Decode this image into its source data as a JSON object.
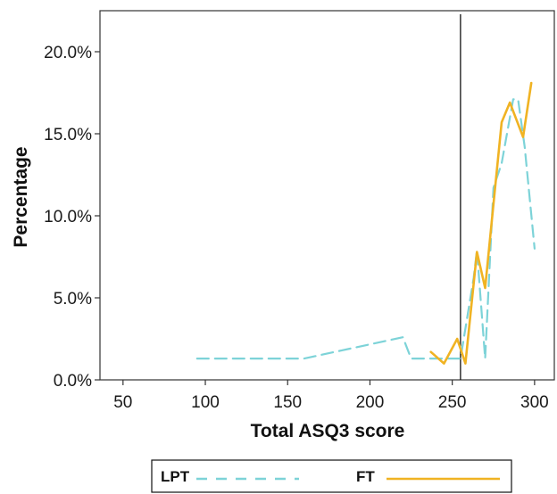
{
  "chart_data": {
    "type": "line",
    "title": "",
    "xlabel": "Total ASQ3 score",
    "ylabel": "Percentage",
    "xlim": [
      36,
      312
    ],
    "ylim": [
      0,
      22.5
    ],
    "x_ticks": [
      50,
      100,
      150,
      200,
      250,
      300
    ],
    "x_tick_labels": [
      "50",
      "100",
      "150",
      "200",
      "250",
      "300"
    ],
    "y_ticks": [
      0,
      5,
      10,
      15,
      20
    ],
    "y_tick_labels": [
      "0.0%",
      "5.0%",
      "10.0%",
      "15.0%",
      "20.0%"
    ],
    "grid": false,
    "legend_position": "bottom",
    "reference_line_x": 255,
    "series": [
      {
        "name": "LPT",
        "color": "#7dd3d8",
        "dash": "dashed",
        "points": [
          [
            95,
            1.3
          ],
          [
            160,
            1.3
          ],
          [
            220,
            2.6
          ],
          [
            225,
            1.3
          ],
          [
            255,
            1.3
          ],
          [
            263,
            6.2
          ],
          [
            265,
            7.9
          ],
          [
            270,
            1.3
          ],
          [
            275,
            11.7
          ],
          [
            280,
            13.2
          ],
          [
            287,
            17.1
          ],
          [
            290,
            17.1
          ],
          [
            294,
            14.2
          ],
          [
            300,
            8.0
          ]
        ]
      },
      {
        "name": "FT",
        "color": "#f0b323",
        "dash": "solid",
        "points": [
          [
            237,
            1.7
          ],
          [
            245,
            1.0
          ],
          [
            253,
            2.5
          ],
          [
            258,
            1.0
          ],
          [
            265,
            7.8
          ],
          [
            270,
            5.6
          ],
          [
            275,
            10.7
          ],
          [
            280,
            15.7
          ],
          [
            285,
            16.9
          ],
          [
            293,
            14.8
          ],
          [
            298,
            18.1
          ]
        ]
      }
    ]
  }
}
